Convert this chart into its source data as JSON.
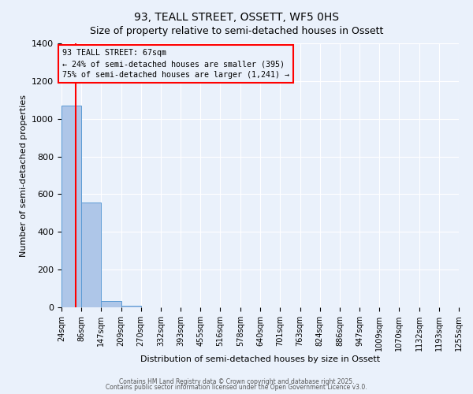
{
  "title": "93, TEALL STREET, OSSETT, WF5 0HS",
  "subtitle": "Size of property relative to semi-detached houses in Ossett",
  "xlabel": "Distribution of semi-detached houses by size in Ossett",
  "ylabel": "Number of semi-detached properties",
  "bin_edges": [
    24,
    86,
    147,
    209,
    270,
    332,
    393,
    455,
    516,
    578,
    640,
    701,
    763,
    824,
    886,
    947,
    1009,
    1070,
    1132,
    1193,
    1255
  ],
  "bar_heights": [
    1070,
    555,
    35,
    10,
    0,
    0,
    0,
    0,
    0,
    0,
    0,
    0,
    0,
    0,
    0,
    0,
    0,
    0,
    0,
    0
  ],
  "bar_color": "#aec6e8",
  "bar_edge_color": "#5b9bd5",
  "property_line_x": 67,
  "property_line_color": "red",
  "annotation_title": "93 TEALL STREET: 67sqm",
  "annotation_line1": "← 24% of semi-detached houses are smaller (395)",
  "annotation_line2": "75% of semi-detached houses are larger (1,241) →",
  "annotation_box_color": "red",
  "ylim": [
    0,
    1400
  ],
  "yticks": [
    0,
    200,
    400,
    600,
    800,
    1000,
    1200,
    1400
  ],
  "bg_color": "#eaf1fb",
  "grid_color": "white",
  "footer_line1": "Contains HM Land Registry data © Crown copyright and database right 2025.",
  "footer_line2": "Contains public sector information licensed under the Open Government Licence v3.0.",
  "title_fontsize": 10,
  "subtitle_fontsize": 9
}
